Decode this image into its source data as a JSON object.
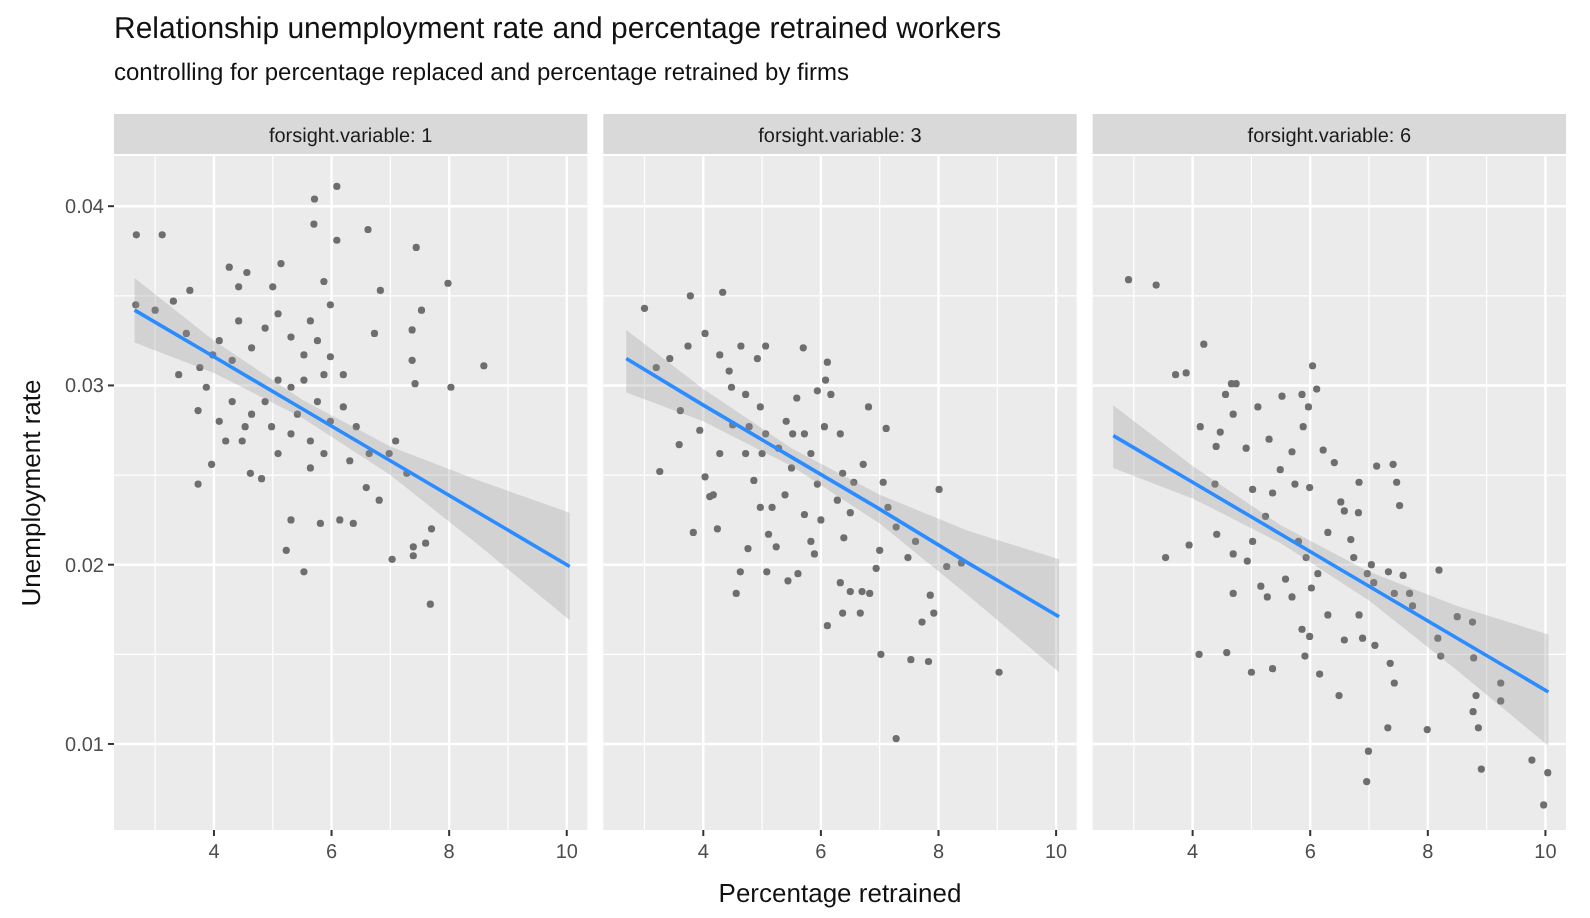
{
  "chart_data": [
    {
      "type": "scatter",
      "title": "forsight.variable: 1",
      "ylabel": "Unemployment rate",
      "annotations": [
        "Relationship unemployment rate and percentage retrained workers",
        "controlling for percentage replaced and percentage retrained by firms"
      ],
      "xlim": [
        2.3,
        10.35
      ],
      "ylim": [
        0.0052,
        0.0428
      ],
      "xticks": [
        {
          "value": 3,
          "label": null
        },
        4,
        {
          "value": 5,
          "label": null
        },
        6,
        {
          "value": 7,
          "label": null
        },
        8,
        {
          "value": 9,
          "label": null
        },
        10
      ],
      "yticks": [
        0.01,
        {
          "value": 0.015,
          "label": null
        },
        0.02,
        {
          "value": 0.025,
          "label": null
        },
        0.03,
        {
          "value": 0.035,
          "label": null
        },
        0.04
      ],
      "grid": true,
      "series": [
        {
          "marker": "circle",
          "color": "#6e6e6e",
          "x": [
            2.68,
            3.12,
            2.67,
            3.0,
            3.31,
            3.59,
            3.4,
            3.73,
            3.73,
            3.96,
            4.26,
            4.42,
            4.56,
            5.14,
            5.0,
            5.7,
            5.71,
            6.09,
            6.09,
            6.62,
            7.44,
            7.98,
            6.83,
            7.53,
            7.37,
            7.37,
            7.42,
            8.03,
            8.59,
            7.09,
            6.98,
            7.28,
            6.81,
            7.03,
            7.39,
            7.39,
            7.7,
            7.6,
            7.68,
            5.53,
            5.23,
            5.31,
            5.81,
            6.14,
            6.37,
            6.59,
            4.62,
            4.81,
            4.48,
            4.09,
            4.31,
            4.64,
            4.87,
            5.09,
            5.31,
            5.53,
            5.76,
            5.98,
            6.2,
            5.09,
            5.31,
            5.53,
            4.87,
            4.64,
            4.31,
            4.09,
            4.2,
            4.53,
            4.98,
            5.31,
            5.64,
            5.87,
            5.64,
            5.98,
            6.2,
            6.42,
            6.64,
            6.31,
            5.42,
            5.09,
            5.76,
            5.87,
            3.87,
            3.76,
            3.98,
            3.53,
            4.42,
            5.64,
            5.98,
            5.87,
            6.73
          ],
          "values": [
            0.0384,
            0.0384,
            0.0345,
            0.0342,
            0.0347,
            0.0353,
            0.0306,
            0.0286,
            0.0245,
            0.0256,
            0.0366,
            0.0355,
            0.0363,
            0.0368,
            0.0355,
            0.039,
            0.0404,
            0.0411,
            0.0381,
            0.0387,
            0.0377,
            0.0357,
            0.0353,
            0.0342,
            0.0331,
            0.0314,
            0.0301,
            0.0299,
            0.0311,
            0.0269,
            0.0262,
            0.0251,
            0.0236,
            0.0203,
            0.0205,
            0.021,
            0.022,
            0.0212,
            0.0178,
            0.0196,
            0.0208,
            0.0225,
            0.0223,
            0.0225,
            0.0223,
            0.0243,
            0.0251,
            0.0248,
            0.0269,
            0.0325,
            0.0314,
            0.0321,
            0.0332,
            0.034,
            0.0327,
            0.0317,
            0.0325,
            0.0316,
            0.0306,
            0.0303,
            0.0299,
            0.0303,
            0.0291,
            0.0284,
            0.0291,
            0.028,
            0.0269,
            0.0277,
            0.0277,
            0.0273,
            0.0269,
            0.0262,
            0.0254,
            0.028,
            0.0288,
            0.0277,
            0.0262,
            0.0258,
            0.0284,
            0.0262,
            0.0291,
            0.0306,
            0.0299,
            0.031,
            0.0317,
            0.0329,
            0.0336,
            0.0336,
            0.0345,
            0.0358,
            0.0329
          ]
        },
        {
          "type": "line",
          "color": "#2b8cff",
          "x": [
            2.65,
            4,
            5.5,
            7,
            8.5,
            10.05
          ],
          "values": [
            0.0342,
            0.0316,
            0.0287,
            0.0258,
            0.0229,
            0.0199
          ],
          "lower": [
            0.0324,
            0.0307,
            0.0282,
            0.025,
            0.0211,
            0.0169
          ],
          "upper": [
            0.036,
            0.0325,
            0.0292,
            0.0266,
            0.0247,
            0.0229
          ]
        }
      ]
    },
    {
      "type": "scatter",
      "title": "forsight.variable: 3",
      "xlabel": "Percentage retrained",
      "tick_labels": "x",
      "xlim": [
        2.3,
        10.35
      ],
      "ylim": [
        0.0052,
        0.0428
      ],
      "xticks": [
        {
          "value": 3,
          "label": null
        },
        4,
        {
          "value": 5,
          "label": null
        },
        6,
        {
          "value": 7,
          "label": null
        },
        8,
        {
          "value": 9,
          "label": null
        },
        10
      ],
      "yticks": [
        0.01,
        {
          "value": 0.015,
          "label": null
        },
        0.02,
        {
          "value": 0.025,
          "label": null
        },
        0.03,
        {
          "value": 0.035,
          "label": null
        },
        0.04
      ],
      "grid": true,
      "series": [
        {
          "marker": "circle",
          "color": "#6e6e6e",
          "x": [
            3.0,
            3.78,
            4.33,
            4.03,
            3.74,
            3.43,
            3.2,
            3.26,
            3.83,
            3.61,
            3.59,
            3.94,
            4.03,
            4.17,
            4.24,
            4.56,
            4.63,
            4.76,
            5.06,
            4.92,
            4.64,
            4.28,
            4.44,
            4.48,
            4.72,
            4.97,
            4.78,
            5.0,
            4.86,
            4.97,
            5.11,
            5.08,
            5.24,
            5.44,
            5.61,
            5.7,
            5.59,
            5.41,
            5.28,
            5.5,
            5.39,
            5.72,
            5.83,
            5.89,
            6.0,
            5.94,
            5.83,
            5.72,
            6.06,
            6.11,
            5.94,
            6.17,
            6.08,
            6.33,
            6.37,
            6.28,
            6.56,
            6.5,
            6.39,
            6.33,
            6.5,
            6.37,
            6.11,
            6.7,
            6.67,
            6.83,
            6.94,
            7.0,
            6.81,
            6.72,
            7.11,
            7.06,
            7.14,
            7.28,
            7.48,
            7.61,
            7.72,
            7.86,
            7.92,
            7.02,
            7.53,
            7.83,
            7.28,
            8.01,
            8.14,
            8.39,
            9.03,
            5.17,
            4.72,
            4.5,
            4.28,
            4.11,
            5.52,
            5.06
          ],
          "values": [
            0.0343,
            0.035,
            0.0352,
            0.0329,
            0.0322,
            0.0315,
            0.031,
            0.0252,
            0.0218,
            0.0286,
            0.0267,
            0.0275,
            0.0249,
            0.0239,
            0.022,
            0.0184,
            0.0196,
            0.0209,
            0.0322,
            0.0315,
            0.0322,
            0.0317,
            0.0308,
            0.0299,
            0.0295,
            0.0288,
            0.0277,
            0.0262,
            0.0247,
            0.0232,
            0.0217,
            0.0196,
            0.021,
            0.0191,
            0.0195,
            0.0321,
            0.0293,
            0.028,
            0.0265,
            0.0254,
            0.0239,
            0.0228,
            0.0213,
            0.0206,
            0.0225,
            0.0245,
            0.0262,
            0.0273,
            0.0277,
            0.0313,
            0.0297,
            0.0295,
            0.0303,
            0.0273,
            0.0251,
            0.0236,
            0.0246,
            0.0229,
            0.0215,
            0.019,
            0.0185,
            0.0173,
            0.0166,
            0.0185,
            0.0173,
            0.0184,
            0.0198,
            0.0208,
            0.0288,
            0.0256,
            0.0276,
            0.0246,
            0.0232,
            0.0221,
            0.0204,
            0.0213,
            0.0168,
            0.0183,
            0.0173,
            0.015,
            0.0147,
            0.0146,
            0.0103,
            0.0242,
            0.0199,
            0.0201,
            0.014,
            0.0232,
            0.0262,
            0.0278,
            0.0262,
            0.0238,
            0.0273,
            0.0273
          ]
        },
        {
          "type": "line",
          "color": "#2b8cff",
          "x": [
            2.69,
            4,
            5.5,
            7,
            8.5,
            10.05
          ],
          "values": [
            0.0315,
            0.0289,
            0.026,
            0.0231,
            0.0201,
            0.0171
          ],
          "lower": [
            0.0296,
            0.028,
            0.0255,
            0.0223,
            0.0183,
            0.014
          ],
          "upper": [
            0.0331,
            0.0298,
            0.0265,
            0.0239,
            0.0219,
            0.0203
          ]
        }
      ]
    },
    {
      "type": "scatter",
      "title": "forsight.variable: 6",
      "tick_labels": "x",
      "xlim": [
        2.3,
        10.35
      ],
      "ylim": [
        0.0052,
        0.0428
      ],
      "xticks": [
        {
          "value": 3,
          "label": null
        },
        4,
        {
          "value": 5,
          "label": null
        },
        6,
        {
          "value": 7,
          "label": null
        },
        8,
        {
          "value": 9,
          "label": null
        },
        10
      ],
      "yticks": [
        0.01,
        {
          "value": 0.015,
          "label": null
        },
        0.02,
        {
          "value": 0.025,
          "label": null
        },
        0.03,
        {
          "value": 0.035,
          "label": null
        },
        0.04
      ],
      "grid": true,
      "series": [
        {
          "marker": "circle",
          "color": "#6e6e6e",
          "x": [
            2.91,
            3.38,
            4.19,
            3.71,
            3.89,
            3.54,
            3.94,
            4.11,
            4.58,
            5.0,
            5.36,
            4.66,
            4.74,
            4.56,
            4.69,
            4.13,
            4.47,
            4.4,
            4.91,
            5.11,
            5.52,
            5.86,
            6.04,
            6.11,
            5.97,
            5.88,
            5.3,
            5.69,
            5.49,
            5.36,
            5.74,
            5.99,
            6.22,
            6.41,
            6.58,
            6.83,
            7.13,
            7.41,
            7.47,
            7.52,
            4.38,
            4.41,
            4.69,
            4.93,
            5.02,
            4.69,
            5.16,
            5.27,
            5.58,
            5.8,
            5.93,
            6.13,
            5.69,
            6.02,
            6.3,
            5.86,
            5.99,
            5.91,
            6.16,
            6.58,
            6.49,
            6.89,
            6.83,
            7.1,
            6.97,
            6.69,
            6.74,
            7.04,
            7.08,
            7.33,
            7.43,
            7.58,
            7.74,
            7.36,
            7.43,
            7.32,
            6.99,
            6.96,
            7.99,
            8.19,
            8.17,
            8.22,
            8.5,
            8.76,
            8.78,
            8.82,
            8.77,
            8.86,
            8.91,
            9.24,
            9.24,
            9.77,
            10.04,
            9.97,
            7.69,
            6.82,
            5.02,
            5.24,
            6.52,
            6.3
          ],
          "values": [
            0.0359,
            0.0356,
            0.0323,
            0.0306,
            0.0307,
            0.0204,
            0.0211,
            0.015,
            0.0151,
            0.014,
            0.0142,
            0.0301,
            0.0301,
            0.0295,
            0.0284,
            0.0277,
            0.0274,
            0.0266,
            0.0265,
            0.0288,
            0.0294,
            0.0295,
            0.0311,
            0.0298,
            0.0288,
            0.0277,
            0.027,
            0.0263,
            0.0253,
            0.024,
            0.0245,
            0.0243,
            0.0264,
            0.0257,
            0.023,
            0.0246,
            0.0255,
            0.0256,
            0.0246,
            0.0233,
            0.0245,
            0.0217,
            0.0206,
            0.0202,
            0.0213,
            0.0184,
            0.0188,
            0.0182,
            0.0192,
            0.0213,
            0.0204,
            0.0195,
            0.0182,
            0.0187,
            0.0172,
            0.0164,
            0.016,
            0.0149,
            0.0139,
            0.0158,
            0.0127,
            0.0159,
            0.0172,
            0.0155,
            0.0195,
            0.0214,
            0.0204,
            0.02,
            0.019,
            0.0196,
            0.0184,
            0.0194,
            0.0177,
            0.0145,
            0.0134,
            0.0109,
            0.0096,
            0.0079,
            0.0108,
            0.0197,
            0.0159,
            0.0149,
            0.0171,
            0.0168,
            0.0148,
            0.0127,
            0.0118,
            0.0109,
            0.0086,
            0.0134,
            0.0124,
            0.0091,
            0.0084,
            0.0066,
            0.0184,
            0.0229,
            0.0242,
            0.0227,
            0.0235,
            0.0218
          ]
        },
        {
          "type": "line",
          "color": "#2b8cff",
          "x": [
            2.65,
            4,
            5.5,
            7,
            8.5,
            10.05
          ],
          "values": [
            0.0272,
            0.0246,
            0.0217,
            0.0188,
            0.0159,
            0.0129
          ],
          "lower": [
            0.0254,
            0.0237,
            0.0212,
            0.018,
            0.0141,
            0.0099
          ],
          "upper": [
            0.0289,
            0.0255,
            0.0222,
            0.0196,
            0.0177,
            0.0161
          ]
        }
      ]
    }
  ]
}
